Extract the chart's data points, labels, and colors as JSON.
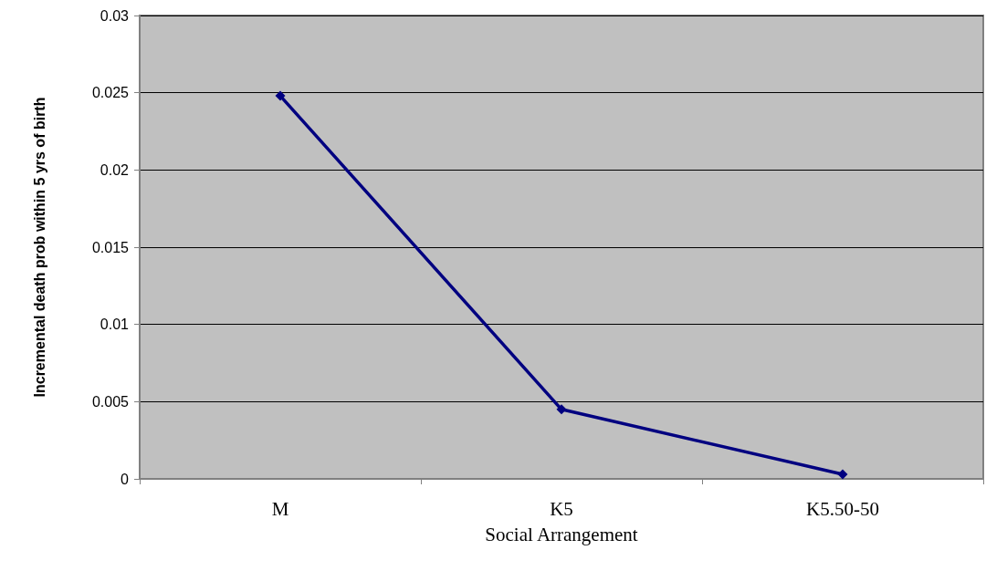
{
  "chart_data": {
    "type": "line",
    "xlabel": "Social Arrangement",
    "ylabel": "Incremental death prob within 5 yrs of birth",
    "categories": [
      "M",
      "K5",
      "K5.50-50"
    ],
    "series": [
      {
        "color": "#000080",
        "values": [
          0.0248,
          0.0045,
          0.0003
        ]
      }
    ],
    "ylim": [
      0,
      0.03
    ],
    "yticks": [
      0,
      0.005,
      0.01,
      0.015,
      0.02,
      0.025,
      0.03
    ],
    "grid": "y",
    "marker": "diamond",
    "line_style": "solid"
  }
}
